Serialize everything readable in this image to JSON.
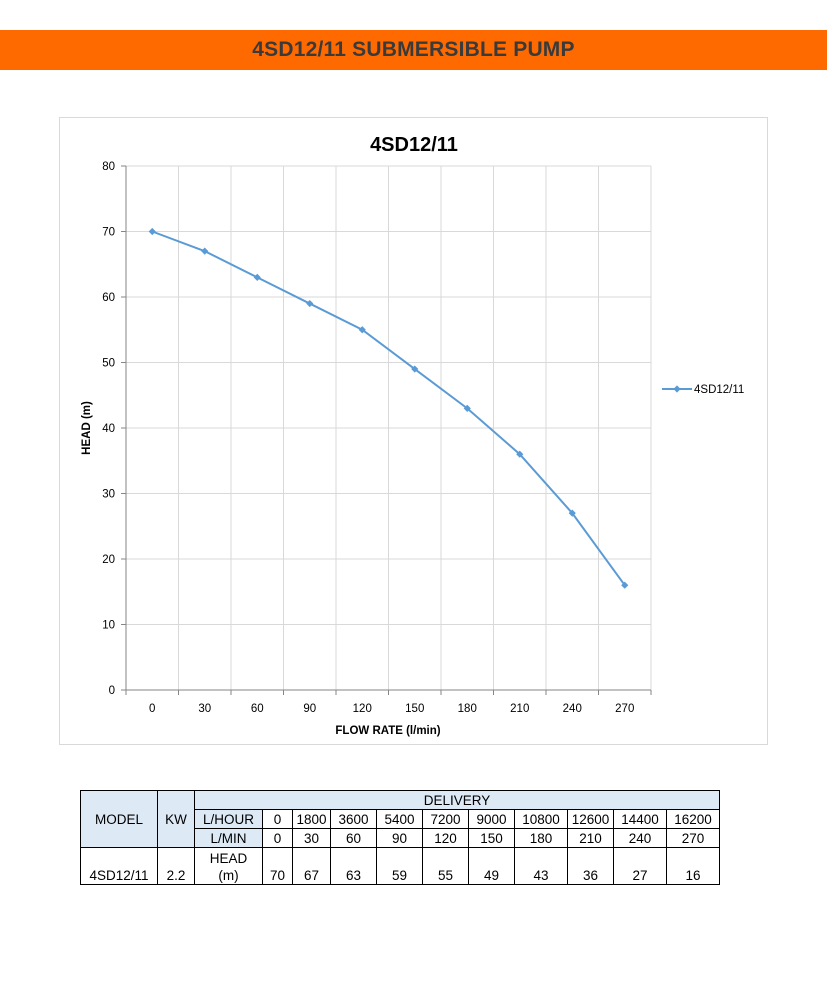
{
  "page": {
    "banner_title": "4SD12/11 SUBMERSIBLE PUMP",
    "banner_color": "#ff6a00"
  },
  "chart_data": {
    "type": "line",
    "title": "4SD12/11",
    "xlabel": "FLOW RATE (l/min)",
    "ylabel": "HEAD (m)",
    "categories": [
      "0",
      "30",
      "60",
      "90",
      "120",
      "150",
      "180",
      "210",
      "240",
      "270"
    ],
    "series": [
      {
        "name": "4SD12/11",
        "color": "#5b9bd5",
        "values": [
          70,
          67,
          63,
          59,
          55,
          49,
          43,
          36,
          27,
          16
        ]
      }
    ],
    "ylim": [
      0,
      80
    ],
    "yticks": [
      "0",
      "10",
      "20",
      "30",
      "40",
      "50",
      "60",
      "70",
      "80"
    ],
    "grid": true,
    "legend": "right"
  },
  "table": {
    "model_header": "MODEL",
    "kw_header": "KW",
    "delivery_header": "DELIVERY",
    "lhour_label": "L/HOUR",
    "lmin_label": "L/MIN",
    "head_label": "HEAD",
    "head_unit": "(m)",
    "lhour": [
      "0",
      "1800",
      "3600",
      "5400",
      "7200",
      "9000",
      "10800",
      "12600",
      "14400",
      "16200"
    ],
    "lmin": [
      "0",
      "30",
      "60",
      "90",
      "120",
      "150",
      "180",
      "210",
      "240",
      "270"
    ],
    "row": {
      "model": "4SD12/11",
      "kw": "2.2",
      "head": [
        "70",
        "67",
        "63",
        "59",
        "55",
        "49",
        "43",
        "36",
        "27",
        "16"
      ]
    }
  }
}
